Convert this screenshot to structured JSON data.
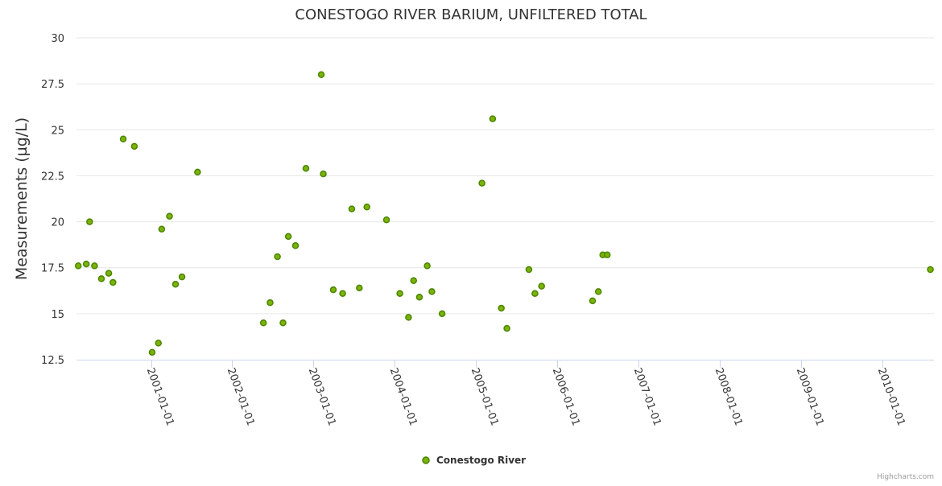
{
  "chart_data": {
    "type": "scatter",
    "title": "CONESTOGO RIVER BARIUM, UNFILTERED TOTAL",
    "xlabel": "",
    "ylabel": "Measurements (µg/L)",
    "ylim": [
      12.5,
      30
    ],
    "yticks": [
      12.5,
      15,
      17.5,
      20,
      22.5,
      25,
      27.5,
      30
    ],
    "xlim": [
      "2000-02-01",
      "2010-08-20"
    ],
    "xticks": [
      "2001-01-01",
      "2002-01-01",
      "2003-01-01",
      "2004-01-01",
      "2005-01-01",
      "2006-01-01",
      "2007-01-01",
      "2008-01-01",
      "2009-01-01",
      "2010-01-01"
    ],
    "grid": true,
    "legend": {
      "position": "bottom-center",
      "entries": [
        "Conestogo River"
      ]
    },
    "color": "#7cb305",
    "series": [
      {
        "name": "Conestogo River",
        "points": [
          [
            "2000-02-09",
            17.6
          ],
          [
            "2000-03-16",
            17.7
          ],
          [
            "2000-03-31",
            20.0
          ],
          [
            "2000-04-22",
            17.6
          ],
          [
            "2000-05-23",
            16.9
          ],
          [
            "2000-06-25",
            17.2
          ],
          [
            "2000-07-14",
            16.7
          ],
          [
            "2000-08-29",
            24.5
          ],
          [
            "2000-10-18",
            24.1
          ],
          [
            "2001-01-06",
            12.9
          ],
          [
            "2001-02-03",
            13.4
          ],
          [
            "2001-02-18",
            19.6
          ],
          [
            "2001-03-25",
            20.3
          ],
          [
            "2001-04-21",
            16.6
          ],
          [
            "2001-05-20",
            17.0
          ],
          [
            "2001-07-29",
            22.7
          ],
          [
            "2002-05-21",
            14.5
          ],
          [
            "2002-06-20",
            15.6
          ],
          [
            "2002-07-23",
            18.1
          ],
          [
            "2002-08-17",
            14.5
          ],
          [
            "2002-09-10",
            19.2
          ],
          [
            "2002-10-12",
            18.7
          ],
          [
            "2002-11-28",
            22.9
          ],
          [
            "2003-02-05",
            28.0
          ],
          [
            "2003-02-14",
            22.6
          ],
          [
            "2003-03-31",
            16.3
          ],
          [
            "2003-05-12",
            16.1
          ],
          [
            "2003-06-22",
            20.7
          ],
          [
            "2003-07-26",
            16.4
          ],
          [
            "2003-08-29",
            20.8
          ],
          [
            "2003-11-25",
            20.1
          ],
          [
            "2004-01-24",
            16.1
          ],
          [
            "2004-03-03",
            14.8
          ],
          [
            "2004-03-26",
            16.8
          ],
          [
            "2004-04-21",
            15.9
          ],
          [
            "2004-05-26",
            17.6
          ],
          [
            "2004-06-16",
            16.2
          ],
          [
            "2004-08-01",
            15.0
          ],
          [
            "2005-01-27",
            22.1
          ],
          [
            "2005-03-16",
            25.6
          ],
          [
            "2005-04-24",
            15.3
          ],
          [
            "2005-05-19",
            14.2
          ],
          [
            "2005-08-26",
            17.4
          ],
          [
            "2005-09-22",
            16.1
          ],
          [
            "2005-10-22",
            16.5
          ],
          [
            "2006-06-08",
            15.7
          ],
          [
            "2006-07-04",
            16.2
          ],
          [
            "2006-07-24",
            18.2
          ],
          [
            "2006-08-13",
            18.2
          ],
          [
            "2010-08-04",
            17.4
          ]
        ]
      }
    ]
  },
  "credits": "Highcharts.com"
}
